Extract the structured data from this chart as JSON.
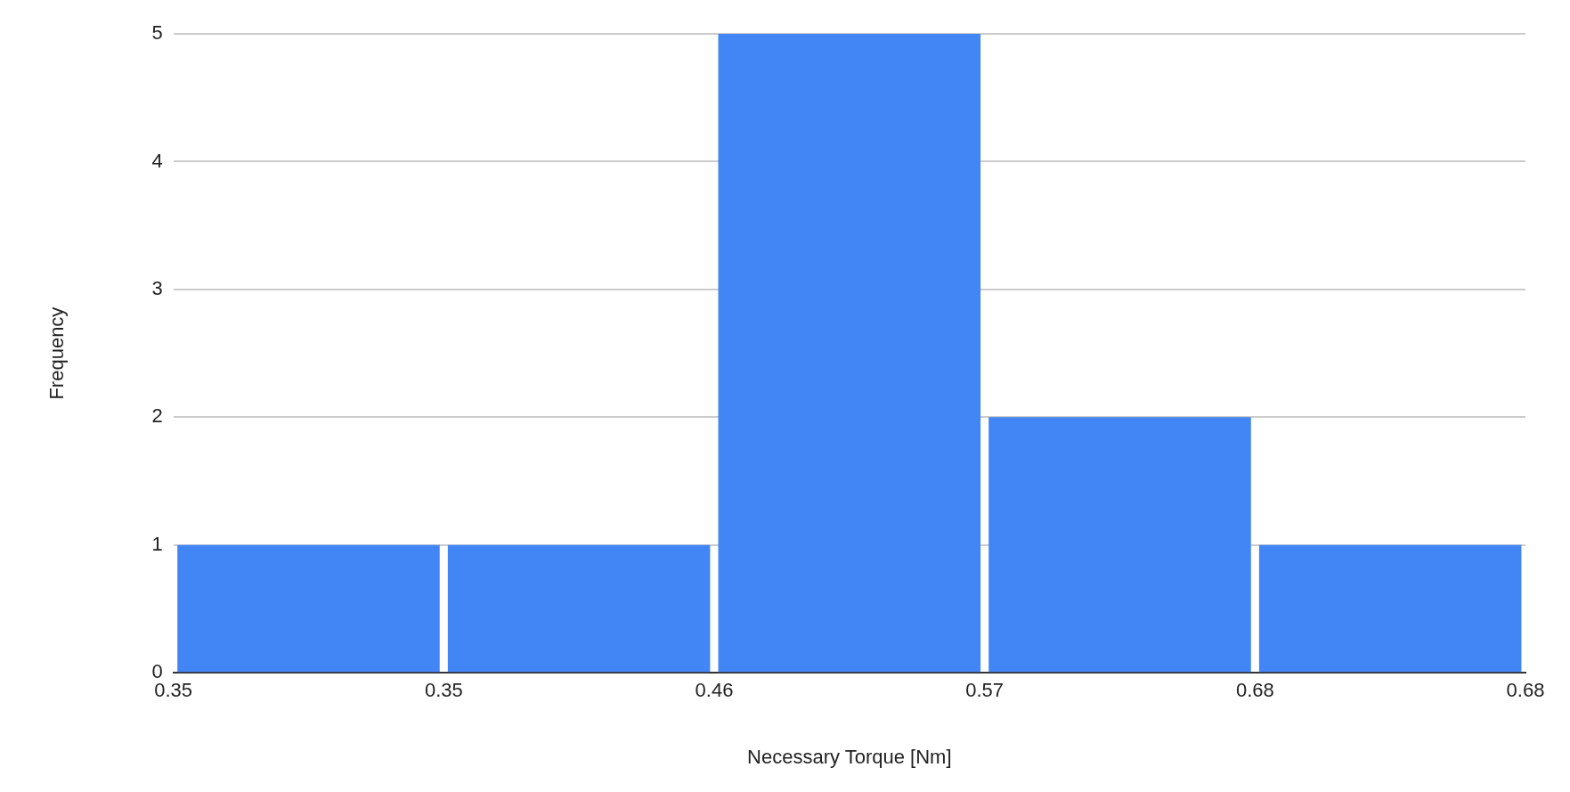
{
  "chart_data": {
    "type": "bar",
    "xlabel": "Necessary Torque [Nm]",
    "ylabel": "Frequency",
    "categories": [
      null,
      null,
      null,
      null,
      null
    ],
    "values": [
      1,
      1,
      5,
      2,
      1
    ],
    "color": "#4285f4",
    "annotations": [
      "0.35",
      "0.35",
      "0.46",
      "0.57",
      "0.68",
      "0.68"
    ],
    "ylim": [
      0,
      5
    ],
    "yticks": [
      0,
      1,
      2,
      3,
      4,
      5
    ],
    "grid": "y",
    "legend": false
  }
}
